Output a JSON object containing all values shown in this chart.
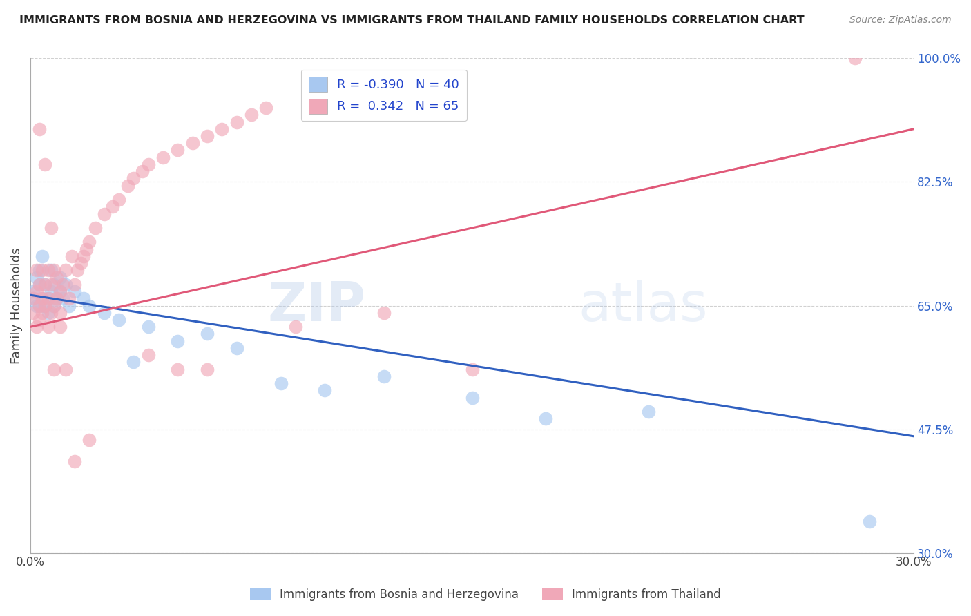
{
  "title": "IMMIGRANTS FROM BOSNIA AND HERZEGOVINA VS IMMIGRANTS FROM THAILAND FAMILY HOUSEHOLDS CORRELATION CHART",
  "source": "Source: ZipAtlas.com",
  "ylabel": "Family Households",
  "xlim": [
    0.0,
    0.3
  ],
  "ylim": [
    0.3,
    1.0
  ],
  "yticks": [
    0.3,
    0.475,
    0.65,
    0.825,
    1.0
  ],
  "yticklabels": [
    "30.0%",
    "47.5%",
    "65.0%",
    "82.5%",
    "100.0%"
  ],
  "legend_r_bosnia": "-0.390",
  "legend_n_bosnia": "40",
  "legend_r_thailand": " 0.342",
  "legend_n_thailand": "65",
  "color_bosnia": "#a8c8f0",
  "color_thailand": "#f0a8b8",
  "line_color_bosnia": "#3060c0",
  "line_color_thailand": "#e05878",
  "watermark_color": "#c8d8f0",
  "bosnia_x": [
    0.001,
    0.001,
    0.002,
    0.002,
    0.003,
    0.003,
    0.003,
    0.004,
    0.004,
    0.005,
    0.005,
    0.006,
    0.006,
    0.007,
    0.007,
    0.008,
    0.008,
    0.009,
    0.01,
    0.01,
    0.011,
    0.012,
    0.013,
    0.015,
    0.018,
    0.02,
    0.025,
    0.03,
    0.035,
    0.04,
    0.05,
    0.06,
    0.07,
    0.085,
    0.1,
    0.12,
    0.15,
    0.175,
    0.21,
    0.285
  ],
  "bosnia_y": [
    0.66,
    0.67,
    0.65,
    0.69,
    0.68,
    0.65,
    0.7,
    0.66,
    0.72,
    0.65,
    0.68,
    0.66,
    0.64,
    0.67,
    0.7,
    0.65,
    0.68,
    0.66,
    0.67,
    0.69,
    0.66,
    0.68,
    0.65,
    0.67,
    0.66,
    0.65,
    0.64,
    0.63,
    0.57,
    0.62,
    0.6,
    0.61,
    0.59,
    0.54,
    0.53,
    0.55,
    0.52,
    0.49,
    0.5,
    0.345
  ],
  "thailand_x": [
    0.001,
    0.001,
    0.002,
    0.002,
    0.002,
    0.003,
    0.003,
    0.003,
    0.004,
    0.004,
    0.004,
    0.005,
    0.005,
    0.006,
    0.006,
    0.006,
    0.007,
    0.007,
    0.008,
    0.008,
    0.009,
    0.009,
    0.01,
    0.01,
    0.011,
    0.012,
    0.013,
    0.014,
    0.015,
    0.016,
    0.017,
    0.018,
    0.019,
    0.02,
    0.022,
    0.025,
    0.028,
    0.03,
    0.033,
    0.035,
    0.038,
    0.04,
    0.045,
    0.05,
    0.055,
    0.06,
    0.065,
    0.07,
    0.075,
    0.08,
    0.003,
    0.005,
    0.007,
    0.008,
    0.01,
    0.012,
    0.015,
    0.02,
    0.04,
    0.05,
    0.06,
    0.09,
    0.12,
    0.15,
    0.28
  ],
  "thailand_y": [
    0.66,
    0.64,
    0.67,
    0.62,
    0.7,
    0.65,
    0.63,
    0.68,
    0.66,
    0.64,
    0.7,
    0.65,
    0.68,
    0.62,
    0.66,
    0.7,
    0.64,
    0.68,
    0.65,
    0.7,
    0.66,
    0.69,
    0.67,
    0.64,
    0.68,
    0.7,
    0.66,
    0.72,
    0.68,
    0.7,
    0.71,
    0.72,
    0.73,
    0.74,
    0.76,
    0.78,
    0.79,
    0.8,
    0.82,
    0.83,
    0.84,
    0.85,
    0.86,
    0.87,
    0.88,
    0.89,
    0.9,
    0.91,
    0.92,
    0.93,
    0.9,
    0.85,
    0.76,
    0.56,
    0.62,
    0.56,
    0.43,
    0.46,
    0.58,
    0.56,
    0.56,
    0.62,
    0.64,
    0.56,
    1.0
  ],
  "line_bosnia_x0": 0.0,
  "line_bosnia_y0": 0.665,
  "line_bosnia_x1": 0.3,
  "line_bosnia_y1": 0.465,
  "line_thailand_x0": 0.0,
  "line_thailand_y0": 0.62,
  "line_thailand_x1": 0.3,
  "line_thailand_y1": 0.9
}
